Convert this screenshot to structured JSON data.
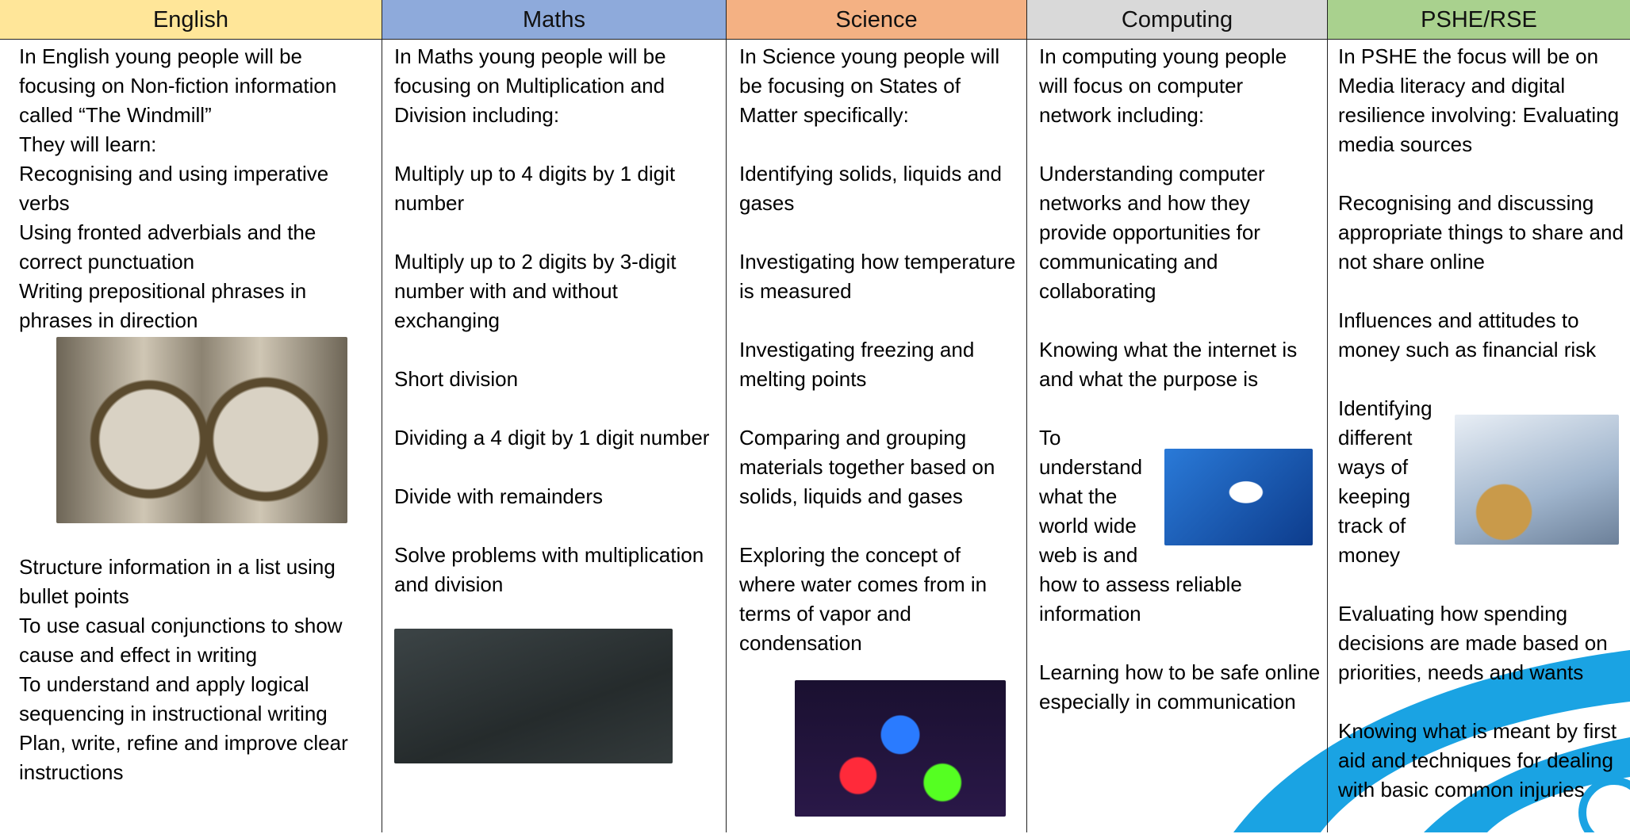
{
  "columns": [
    {
      "title": "English",
      "items": [
        "In English young people will be focusing on Non-fiction information called “The Windmill”",
        "They will learn:",
        "Recognising and using imperative verbs",
        "Using fronted adverbials and the correct punctuation",
        "Writing prepositional phrases in phrases in direction",
        "Structure information in a list using bullet points",
        "To use casual conjunctions to show cause and effect in writing",
        "To understand and apply logical sequencing in instructional writing",
        "Plan, write, refine and improve clear instructions"
      ]
    },
    {
      "title": "Maths",
      "items": [
        "In Maths young people will be focusing on Multiplication and Division including:",
        "Multiply up to 4 digits by 1 digit number",
        "Multiply up to 2 digits by 3-digit number with and without exchanging",
        "Short division",
        "Dividing a 4 digit by 1 digit number",
        "Divide with remainders",
        "Solve problems with multiplication and division"
      ]
    },
    {
      "title": "Science",
      "items": [
        "In Science young people will be focusing on States of Matter specifically:",
        "Identifying solids, liquids and gases",
        "Investigating how temperature is measured",
        "Investigating freezing and melting points",
        "Comparing and grouping materials together based on solids, liquids and gases",
        "Exploring the concept of where water comes from in terms of vapor and condensation"
      ]
    },
    {
      "title": "Computing",
      "items": [
        "In computing young people will focus on computer network including:",
        "Understanding computer networks and how they provide opportunities for communicating and collaborating",
        "Knowing what the internet is and what the purpose is",
        "To understand what the world wide web is and how to assess reliable information",
        "Learning how to be safe online especially in communication"
      ]
    },
    {
      "title": "PSHE/RSE",
      "items": [
        "In PSHE the focus will be on Media literacy and digital resilience involving: Evaluating media sources",
        "Recognising and discussing appropriate things to share and not share online",
        "Influences and attitudes to money such as financial risk",
        "Identifying different ways of keeping track of money",
        "Evaluating how spending decisions are made based on priorities, needs and wants",
        "Knowing what is meant by first aid and techniques for dealing with basic common injuries"
      ]
    }
  ]
}
